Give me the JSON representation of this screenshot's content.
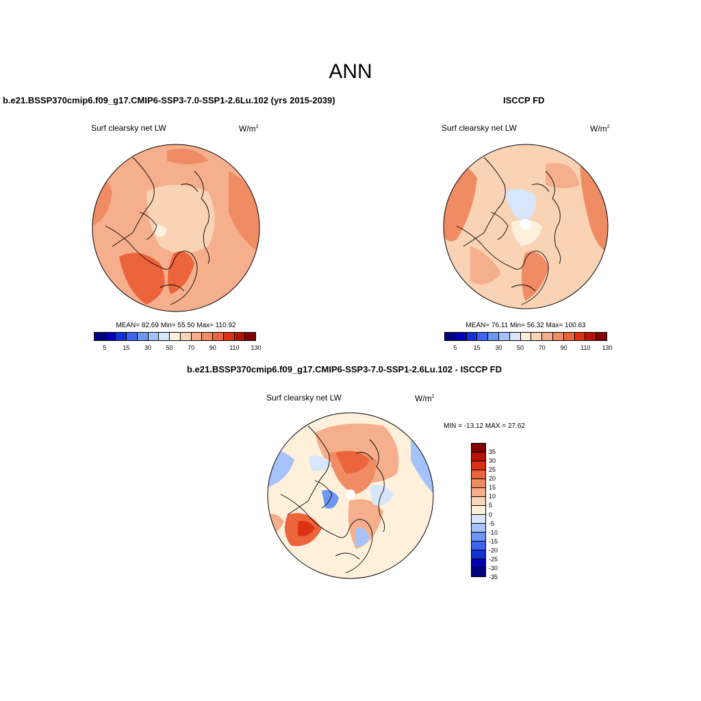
{
  "figure": {
    "title": "ANN"
  },
  "panels": [
    {
      "title": "b.e21.BSSP370cmip6.f09_g17.CMIP6-SSP3-7.0-SSP1-2.6Lu.102 (yrs 2015-2039)",
      "variable": "Surf clearsky net LW",
      "units_base": "W/m",
      "units_exp": "2",
      "stats_text": "MEAN=  82.69  Min=  55.50  Max= 110.92",
      "mean": 82.69,
      "min": 55.5,
      "max": 110.92
    },
    {
      "title": "ISCCP FD",
      "variable": "Surf clearsky net LW",
      "units_base": "W/m",
      "units_exp": "2",
      "stats_text": "MEAN=  76.11  Min=  56.32  Max= 100.63",
      "mean": 76.11,
      "min": 56.32,
      "max": 100.63
    },
    {
      "title": "b.e21.BSSP370cmip6.f09_g17.CMIP6-SSP3-7.0-SSP1-2.6Lu.102 - ISCCP FD",
      "variable": "Surf clearsky net LW",
      "units_base": "W/m",
      "units_exp": "2",
      "stats_text": "MIN = -13.12 MAX =  27.62",
      "min": -13.12,
      "max": 27.62
    }
  ],
  "colorbar_abs": {
    "colors": [
      "#00007f",
      "#0000b2",
      "#1432d2",
      "#3c64f0",
      "#6e96f5",
      "#a5c3fa",
      "#d7e6fa",
      "#fff0dc",
      "#fad2b4",
      "#f5af8c",
      "#f08c64",
      "#eb643c",
      "#dc3214",
      "#b41400",
      "#820000"
    ],
    "tick_labels": [
      "5",
      "15",
      "30",
      "50",
      "70",
      "90",
      "110",
      "130"
    ]
  },
  "colorbar_diff": {
    "colors": [
      "#820000",
      "#b41400",
      "#dc3214",
      "#eb643c",
      "#f08c64",
      "#f5af8c",
      "#fad2b4",
      "#fff0dc",
      "#d7e6fa",
      "#a5c3fa",
      "#6e96f5",
      "#3c64f0",
      "#1432d2",
      "#0000b2",
      "#00007f"
    ],
    "tick_labels": [
      "35",
      "30",
      "25",
      "20",
      "15",
      "10",
      "5",
      "0",
      "-5",
      "-10",
      "-15",
      "-20",
      "-25",
      "-30",
      "-35"
    ]
  },
  "map_legend_colors": {
    "land_outline": "#000000",
    "ocean_background": "#fbd3b7",
    "polar_hole": "#ffffff"
  }
}
